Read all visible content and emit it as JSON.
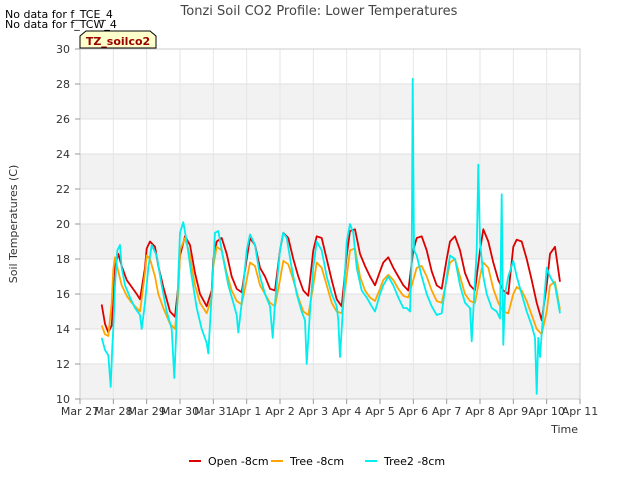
{
  "notes": [
    "No data for f_TCE_4",
    "No data for f_TCW_4"
  ],
  "chart_data": {
    "type": "line",
    "title": "Tonzi Soil CO2 Profile: Lower Temperatures",
    "xlabel": "Time",
    "ylabel": "Soil Temperatures (C)",
    "ylim": [
      10,
      30
    ],
    "yticks": [
      10,
      12,
      14,
      16,
      18,
      20,
      22,
      24,
      26,
      28,
      30
    ],
    "xlim": [
      0,
      15
    ],
    "xtick_labels": [
      "Mar 27",
      "Mar 28",
      "Mar 29",
      "Mar 30",
      "Mar 31",
      "Apr 1",
      "Apr 2",
      "Apr 3",
      "Apr 4",
      "Apr 5",
      "Apr 6",
      "Apr 7",
      "Apr 8",
      "Apr 9",
      "Apr 10",
      "Apr 11"
    ],
    "x_unit": "days since Mar 27",
    "background_bands": true,
    "badge": "TZ_soilco2",
    "legend_position": "bottom-center",
    "series": [
      {
        "name": "Open -8cm",
        "color": "#dd0000",
        "x": [
          0.65,
          0.75,
          0.85,
          0.95,
          1.0,
          1.05,
          1.15,
          1.25,
          1.4,
          1.55,
          1.7,
          1.8,
          1.95,
          2.0,
          2.1,
          2.25,
          2.35,
          2.5,
          2.7,
          2.85,
          2.95,
          3.0,
          3.15,
          3.3,
          3.45,
          3.6,
          3.8,
          3.95,
          4.0,
          4.1,
          4.25,
          4.4,
          4.55,
          4.7,
          4.85,
          5.0,
          5.1,
          5.25,
          5.4,
          5.55,
          5.7,
          5.85,
          6.0,
          6.1,
          6.25,
          6.4,
          6.55,
          6.7,
          6.85,
          7.0,
          7.1,
          7.25,
          7.4,
          7.55,
          7.7,
          7.85,
          8.0,
          8.1,
          8.25,
          8.4,
          8.55,
          8.7,
          8.85,
          9.0,
          9.1,
          9.25,
          9.4,
          9.55,
          9.7,
          9.85,
          10.0,
          10.1,
          10.25,
          10.4,
          10.55,
          10.7,
          10.85,
          11.0,
          11.1,
          11.25,
          11.4,
          11.55,
          11.7,
          11.85,
          12.0,
          12.1,
          12.25,
          12.4,
          12.55,
          12.7,
          12.85,
          13.0,
          13.1,
          13.25,
          13.4,
          13.55,
          13.7,
          13.85,
          14.0,
          14.1,
          14.25,
          14.4
        ],
        "y": [
          15.4,
          14.3,
          13.8,
          14.2,
          15.6,
          17.6,
          18.3,
          17.6,
          16.8,
          16.4,
          16.0,
          15.7,
          17.5,
          18.6,
          19.0,
          18.7,
          17.6,
          16.4,
          15.0,
          14.7,
          16.5,
          18.2,
          19.3,
          18.8,
          17.2,
          16.0,
          15.3,
          16.2,
          18.0,
          19.0,
          19.2,
          18.3,
          17.0,
          16.3,
          16.1,
          18.0,
          19.2,
          18.8,
          17.5,
          17.0,
          16.3,
          16.2,
          18.5,
          19.5,
          19.2,
          18.0,
          17.0,
          16.2,
          15.9,
          18.5,
          19.3,
          19.2,
          18.0,
          16.8,
          15.7,
          15.3,
          18.2,
          19.6,
          19.7,
          18.3,
          17.6,
          17.0,
          16.5,
          17.3,
          17.8,
          18.1,
          17.5,
          17.0,
          16.5,
          16.2,
          18.5,
          19.2,
          19.3,
          18.5,
          17.3,
          16.5,
          16.3,
          18.0,
          19.0,
          19.3,
          18.5,
          17.2,
          16.5,
          16.2,
          18.5,
          19.7,
          19.0,
          17.8,
          16.8,
          16.2,
          16.0,
          18.7,
          19.1,
          19.0,
          18.0,
          16.8,
          15.5,
          14.5,
          16.5,
          18.3,
          18.7,
          16.7
        ]
      },
      {
        "name": "Tree -8cm",
        "color": "#ffa500",
        "x": [
          0.65,
          0.75,
          0.85,
          0.95,
          1.0,
          1.05,
          1.15,
          1.25,
          1.4,
          1.55,
          1.7,
          1.8,
          1.95,
          2.0,
          2.1,
          2.25,
          2.35,
          2.5,
          2.7,
          2.85,
          2.95,
          3.0,
          3.15,
          3.3,
          3.45,
          3.6,
          3.8,
          3.95,
          4.0,
          4.1,
          4.25,
          4.4,
          4.55,
          4.7,
          4.85,
          5.0,
          5.1,
          5.25,
          5.4,
          5.55,
          5.7,
          5.85,
          6.0,
          6.1,
          6.25,
          6.4,
          6.55,
          6.7,
          6.85,
          7.0,
          7.1,
          7.25,
          7.4,
          7.55,
          7.7,
          7.85,
          8.0,
          8.1,
          8.25,
          8.4,
          8.55,
          8.7,
          8.85,
          9.0,
          9.1,
          9.25,
          9.4,
          9.55,
          9.7,
          9.85,
          10.0,
          10.1,
          10.25,
          10.4,
          10.55,
          10.7,
          10.85,
          11.0,
          11.1,
          11.25,
          11.4,
          11.55,
          11.7,
          11.85,
          12.0,
          12.1,
          12.25,
          12.4,
          12.55,
          12.7,
          12.85,
          13.0,
          13.1,
          13.25,
          13.4,
          13.55,
          13.7,
          13.85,
          14.0,
          14.1,
          14.25,
          14.4
        ],
        "y": [
          14.2,
          13.7,
          13.6,
          15.5,
          17.4,
          18.1,
          17.3,
          16.5,
          15.9,
          15.5,
          15.2,
          15.0,
          17.2,
          18.2,
          18.0,
          17.0,
          16.0,
          15.2,
          14.3,
          14.0,
          16.0,
          18.5,
          19.2,
          18.2,
          16.5,
          15.5,
          14.9,
          15.8,
          17.6,
          18.7,
          18.5,
          17.2,
          16.2,
          15.6,
          15.4,
          16.8,
          17.8,
          17.6,
          16.5,
          16.0,
          15.5,
          15.3,
          16.8,
          17.9,
          17.7,
          16.8,
          15.8,
          15.0,
          14.8,
          16.5,
          17.8,
          17.5,
          16.5,
          15.5,
          15.0,
          14.9,
          17.0,
          18.5,
          18.6,
          17.0,
          16.2,
          15.8,
          15.6,
          16.3,
          16.8,
          17.1,
          16.8,
          16.3,
          15.9,
          15.8,
          16.8,
          17.5,
          17.6,
          17.0,
          16.2,
          15.6,
          15.5,
          16.8,
          17.8,
          18.0,
          17.0,
          16.0,
          15.6,
          15.5,
          17.0,
          17.8,
          17.5,
          16.3,
          15.5,
          15.0,
          14.9,
          16.0,
          16.4,
          16.2,
          15.6,
          14.8,
          14.0,
          13.7,
          15.0,
          16.5,
          16.7,
          15.1
        ]
      },
      {
        "name": "Tree2 -8cm",
        "color": "#00eeee",
        "x": [
          0.65,
          0.75,
          0.85,
          0.92,
          0.97,
          1.0,
          1.05,
          1.12,
          1.2,
          1.25,
          1.35,
          1.5,
          1.65,
          1.8,
          1.85,
          1.95,
          2.05,
          2.15,
          2.3,
          2.45,
          2.6,
          2.75,
          2.83,
          2.88,
          2.95,
          3.0,
          3.1,
          3.2,
          3.35,
          3.5,
          3.65,
          3.8,
          3.85,
          3.95,
          4.05,
          4.15,
          4.3,
          4.45,
          4.6,
          4.7,
          4.75,
          4.85,
          5.0,
          5.1,
          5.25,
          5.4,
          5.55,
          5.7,
          5.78,
          5.85,
          6.0,
          6.1,
          6.2,
          6.35,
          6.5,
          6.65,
          6.75,
          6.8,
          6.9,
          7.0,
          7.1,
          7.25,
          7.4,
          7.55,
          7.7,
          7.75,
          7.8,
          7.9,
          8.0,
          8.1,
          8.2,
          8.3,
          8.45,
          8.6,
          8.75,
          8.85,
          9.0,
          9.1,
          9.25,
          9.4,
          9.55,
          9.7,
          9.8,
          9.9,
          9.95,
          9.98,
          10.02,
          10.1,
          10.25,
          10.4,
          10.55,
          10.7,
          10.85,
          11.0,
          11.1,
          11.25,
          11.4,
          11.55,
          11.7,
          11.75,
          11.8,
          11.9,
          11.95,
          12.0,
          12.05,
          12.1,
          12.2,
          12.35,
          12.5,
          12.6,
          12.65,
          12.7,
          12.75,
          12.85,
          13.0,
          13.1,
          13.25,
          13.4,
          13.55,
          13.65,
          13.7,
          13.75,
          13.8,
          13.9,
          14.0,
          14.1,
          14.25,
          14.4
        ],
        "y": [
          13.5,
          12.8,
          12.5,
          10.7,
          13.0,
          14.0,
          16.5,
          18.5,
          18.8,
          17.5,
          16.5,
          15.8,
          15.2,
          14.8,
          14.0,
          15.5,
          17.5,
          18.8,
          18.2,
          16.5,
          15.0,
          14.0,
          11.2,
          13.5,
          17.0,
          19.5,
          20.1,
          19.0,
          17.0,
          15.2,
          14.0,
          13.2,
          12.6,
          16.0,
          19.5,
          19.6,
          18.0,
          16.5,
          15.5,
          14.8,
          13.8,
          15.5,
          18.5,
          19.4,
          18.8,
          17.0,
          16.0,
          15.3,
          13.5,
          15.5,
          18.5,
          19.5,
          19.2,
          17.5,
          16.0,
          15.0,
          14.5,
          12.0,
          15.0,
          17.5,
          19.0,
          18.5,
          17.0,
          16.0,
          15.3,
          14.5,
          12.4,
          15.5,
          19.0,
          20.0,
          19.5,
          17.5,
          16.2,
          15.8,
          15.3,
          15.0,
          16.0,
          16.5,
          17.0,
          16.5,
          15.8,
          15.2,
          15.2,
          15.0,
          18.0,
          28.3,
          18.5,
          18.2,
          17.0,
          16.0,
          15.3,
          14.8,
          14.9,
          17.0,
          18.2,
          18.0,
          16.5,
          15.5,
          15.2,
          13.3,
          15.0,
          18.5,
          23.4,
          19.0,
          18.0,
          17.0,
          16.0,
          15.2,
          15.0,
          14.6,
          21.7,
          13.1,
          16.0,
          17.0,
          17.9,
          17.0,
          16.0,
          15.0,
          14.2,
          13.5,
          10.3,
          13.5,
          12.4,
          15.0,
          17.5,
          17.0,
          16.5,
          14.9
        ]
      }
    ]
  }
}
